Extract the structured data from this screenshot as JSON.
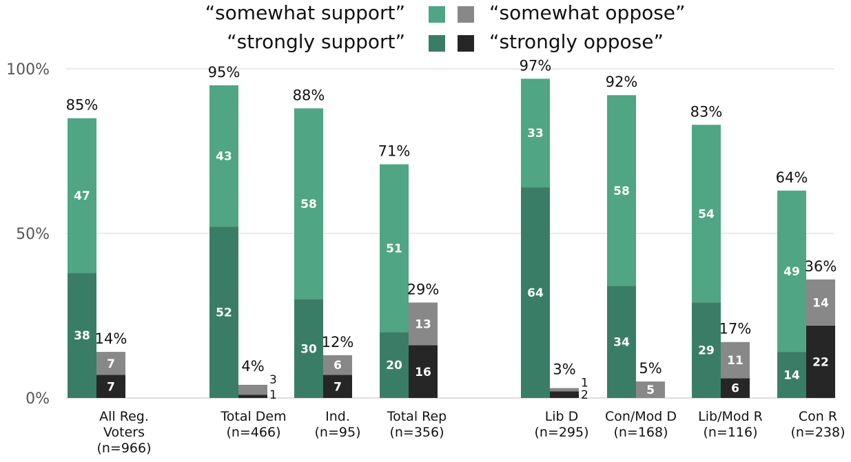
{
  "chart_data": {
    "type": "bar",
    "stacked": true,
    "colors": {
      "somewhat_support": "#4fa584",
      "strongly_support": "#3a7d66",
      "somewhat_oppose": "#888888",
      "strongly_oppose": "#262626",
      "grid": "#d6d6d6"
    },
    "legend": [
      {
        "key": "somewhat_support",
        "label": "“somewhat support”",
        "color": "#4fa584"
      },
      {
        "key": "somewhat_oppose",
        "label": "“somewhat oppose”",
        "color": "#888888"
      },
      {
        "key": "strongly_support",
        "label": "“strongly support”",
        "color": "#3a7d66"
      },
      {
        "key": "strongly_oppose",
        "label": "“strongly oppose”",
        "color": "#262626"
      }
    ],
    "y_ticks": [
      "0%",
      "50%",
      "100%"
    ],
    "ylim": [
      0,
      100
    ],
    "grid": true,
    "groups": [
      {
        "label_lines": [
          "All Reg.",
          "Voters",
          "(n=966)"
        ],
        "support": {
          "strongly": 38,
          "somewhat": 47,
          "total": "85%"
        },
        "oppose": {
          "strongly": 7,
          "somewhat": 7,
          "total": "14%"
        }
      },
      {
        "label_lines": [
          "Total Dem",
          "(n=466)"
        ],
        "support": {
          "strongly": 52,
          "somewhat": 43,
          "total": "95%"
        },
        "oppose": {
          "strongly": 1,
          "somewhat": 3,
          "total": "4%"
        }
      },
      {
        "label_lines": [
          "Ind.",
          "(n=95)"
        ],
        "support": {
          "strongly": 30,
          "somewhat": 58,
          "total": "88%"
        },
        "oppose": {
          "strongly": 7,
          "somewhat": 6,
          "total": "12%"
        }
      },
      {
        "label_lines": [
          "Total Rep",
          "(n=356)"
        ],
        "support": {
          "strongly": 20,
          "somewhat": 51,
          "total": "71%"
        },
        "oppose": {
          "strongly": 16,
          "somewhat": 13,
          "total": "29%"
        }
      },
      {
        "label_lines": [
          "Lib D",
          "(n=295)"
        ],
        "support": {
          "strongly": 64,
          "somewhat": 33,
          "total": "97%"
        },
        "oppose": {
          "strongly": 2,
          "somewhat": 1,
          "total": "3%"
        }
      },
      {
        "label_lines": [
          "Con/Mod D",
          "(n=168)"
        ],
        "support": {
          "strongly": 34,
          "somewhat": 58,
          "total": "92%"
        },
        "oppose": {
          "strongly": 0,
          "somewhat": 5,
          "total": "5%"
        }
      },
      {
        "label_lines": [
          "Lib/Mod R",
          "(n=116)"
        ],
        "support": {
          "strongly": 29,
          "somewhat": 54,
          "total": "83%"
        },
        "oppose": {
          "strongly": 6,
          "somewhat": 11,
          "total": "17%"
        }
      },
      {
        "label_lines": [
          "Con R",
          "(n=238)"
        ],
        "support": {
          "strongly": 14,
          "somewhat": 49,
          "total": "64%"
        },
        "oppose": {
          "strongly": 22,
          "somewhat": 14,
          "total": "36%"
        }
      }
    ]
  }
}
